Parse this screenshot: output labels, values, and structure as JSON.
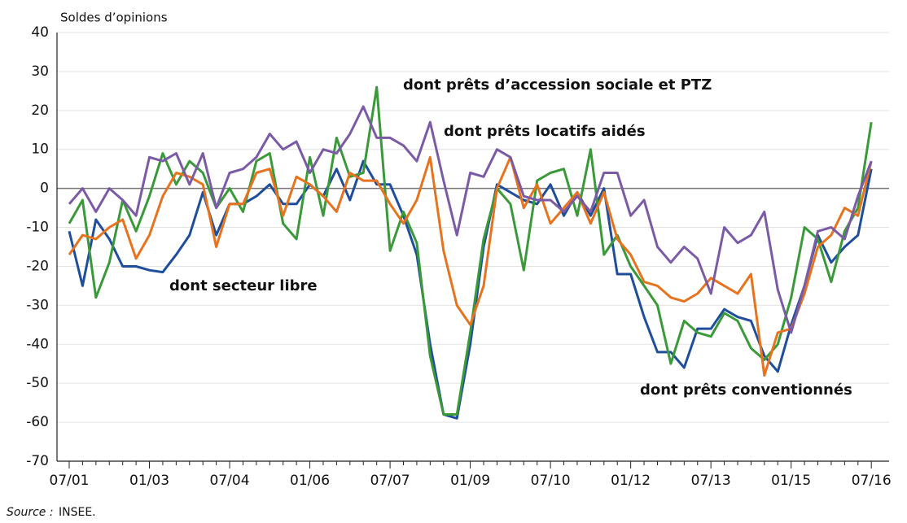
{
  "chart_data": {
    "type": "line",
    "ylabel": "Soldes d’opinions",
    "categories": [
      "07/01",
      null,
      null,
      null,
      null,
      null,
      "01/03",
      null,
      null,
      null,
      null,
      null,
      "07/04",
      null,
      null,
      null,
      null,
      null,
      "01/06",
      null,
      null,
      null,
      null,
      null,
      "07/07",
      null,
      null,
      null,
      null,
      null,
      "01/09",
      null,
      null,
      null,
      null,
      null,
      "07/10",
      null,
      null,
      null,
      null,
      null,
      "01/12",
      null,
      null,
      null,
      null,
      null,
      "07/13",
      null,
      null,
      null,
      null,
      null,
      "01/15",
      null,
      null,
      null,
      null,
      null,
      "07/16"
    ],
    "series": [
      {
        "name": "dont secteur libre",
        "color": "#1f4e9c",
        "values": [
          -11,
          -25,
          -8,
          -13,
          -20,
          -20,
          -21,
          -21.5,
          -17,
          -12,
          -1,
          -12,
          -4,
          -4,
          -2,
          1,
          -4,
          -4,
          1,
          -2,
          5,
          -3,
          7,
          1,
          1,
          -7,
          -17,
          -40,
          -58,
          -59,
          -40,
          -15,
          1,
          -1,
          -3,
          -4,
          1,
          -7,
          -1,
          -7,
          0,
          -22,
          -22,
          -33,
          -42,
          -42,
          -46,
          -36,
          -36,
          -31,
          -33,
          -34,
          -43,
          -47,
          -35,
          -25,
          -12,
          -19,
          -15,
          -12,
          5
        ]
      },
      {
        "name": "dont prêts d’accession sociale et PTZ",
        "color": "#3a9a3a",
        "values": [
          -9,
          -3,
          -28,
          -19,
          -3,
          -11,
          -2,
          9,
          1,
          7,
          4,
          -5,
          0,
          -6,
          7,
          9,
          -9,
          -13,
          8,
          -7,
          13,
          3,
          4,
          26,
          -16,
          -6,
          -14,
          -43,
          -58,
          -58,
          -37,
          -13,
          0,
          -4,
          -21,
          2,
          4,
          5,
          -7,
          10,
          -17,
          -12,
          -20,
          -25,
          -30,
          -45,
          -34,
          -37,
          -38,
          -32,
          -34,
          -41,
          -44,
          -40,
          -28,
          -10,
          -13,
          -24,
          -11,
          -5,
          17
        ]
      },
      {
        "name": "dont prêts conventionnés",
        "color": "#e8731f",
        "values": [
          -17,
          -12,
          -13,
          -10,
          -8,
          -18,
          -12,
          -2,
          4,
          3,
          1,
          -15,
          -4,
          -4,
          4,
          5,
          -7,
          3,
          1,
          -2,
          -6,
          4,
          2,
          2,
          -4,
          -9,
          -3,
          8,
          -16,
          -30,
          -35,
          -25,
          0,
          8,
          -5,
          1,
          -9,
          -5,
          -1,
          -9,
          -1,
          -13,
          -17,
          -24,
          -25,
          -28,
          -29,
          -27,
          -23,
          -25,
          -27,
          -22,
          -48,
          -37,
          -36,
          -27,
          -15,
          -12,
          -5,
          -7,
          7
        ]
      },
      {
        "name": "dont prêts locatifs aidés",
        "color": "#7b5aa6",
        "values": [
          -4,
          0,
          -6,
          0,
          -3,
          -7,
          8,
          7,
          9,
          1,
          9,
          -5,
          4,
          5,
          8,
          14,
          10,
          12,
          4,
          10,
          9,
          14,
          21,
          13,
          13,
          11,
          7,
          17,
          2,
          -12,
          4,
          3,
          10,
          8,
          -2,
          -3,
          -3,
          -6,
          -2,
          -6,
          4,
          4,
          -7,
          -3,
          -15,
          -19,
          -15,
          -18,
          -27,
          -10,
          -14,
          -12,
          -6,
          -26,
          -37,
          -25,
          -11,
          -10,
          -13,
          -2,
          7
        ]
      }
    ],
    "ylim": [
      -70,
      40
    ],
    "yticks": [
      -70,
      -60,
      -50,
      -40,
      -30,
      -20,
      -10,
      0,
      10,
      20,
      30,
      40
    ],
    "grid": true,
    "source_label": "Source :",
    "source": "INSEE."
  }
}
